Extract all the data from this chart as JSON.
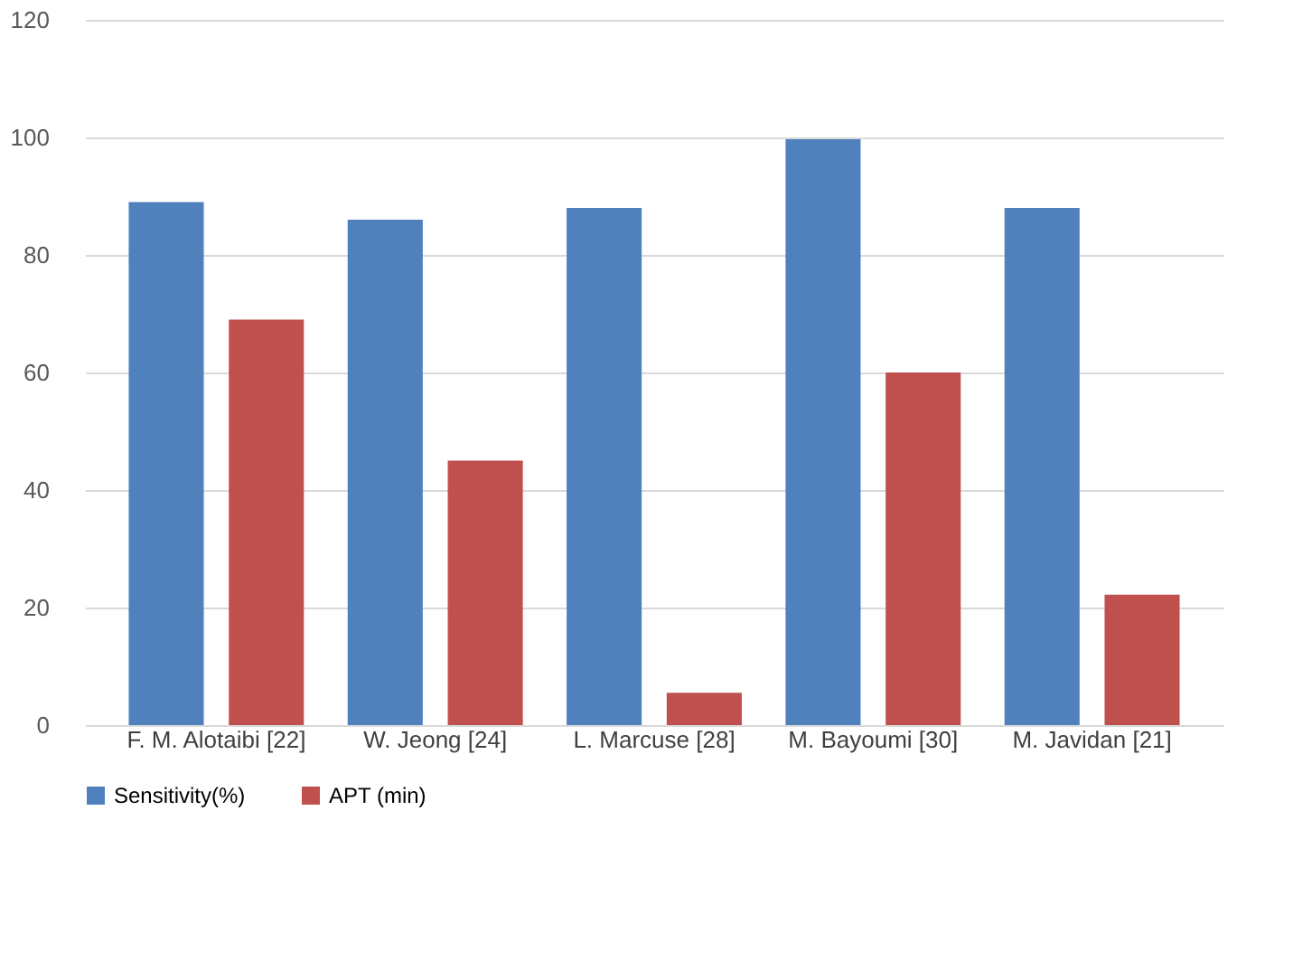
{
  "chart_data": {
    "type": "bar",
    "categories": [
      "F. M. Alotaibi [22]",
      "W. Jeong [24]",
      "L. Marcuse [28]",
      "M. Bayoumi [30]",
      "M. Javidan [21]"
    ],
    "series": [
      {
        "name": "Sensitivity(%)",
        "color": "#4f81bd",
        "values": [
          89,
          86,
          88,
          99.7,
          88
        ]
      },
      {
        "name": "APT (min)",
        "color": "#c0504d",
        "values": [
          69,
          45,
          5.5,
          60,
          22.2
        ]
      }
    ],
    "ylim": [
      0,
      120
    ],
    "yticks": [
      0,
      20,
      40,
      60,
      80,
      100,
      120
    ],
    "grid": "y",
    "legend": "bottom"
  }
}
